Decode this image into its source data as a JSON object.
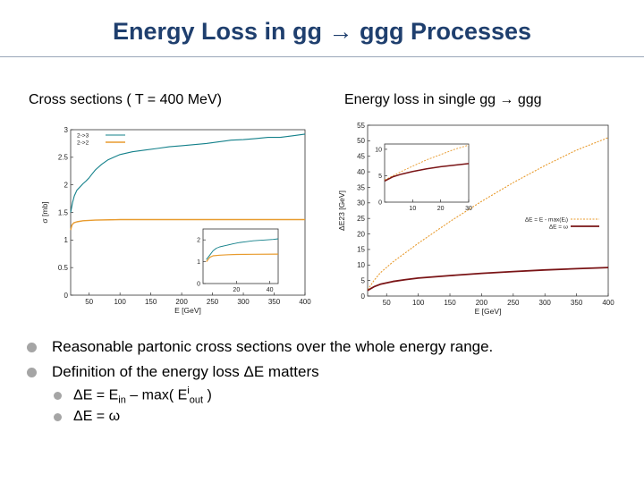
{
  "page": {
    "title": "Energy Loss in gg → ggg Processes",
    "left_caption": "Cross sections ( T = 400 MeV)",
    "right_caption": "Energy loss in single gg → ggg"
  },
  "bullets": [
    "Reasonable partonic cross sections over the whole energy range.",
    "Definition of the energy loss ΔE matters"
  ],
  "sub_bullets": {
    "one": {
      "lead": "ΔE = E",
      "sub1": "in",
      "mid": " – max( E",
      "sup": "i",
      "sub2": "out",
      "tail": " )"
    },
    "two": {
      "text": "ΔE = ω"
    }
  },
  "colors": {
    "title": "#1f3f6e",
    "teal": "#13808a",
    "orange": "#e89b2e",
    "darkred": "#7a1416",
    "bullet": "#a5a5a5"
  },
  "chart_data": [
    {
      "type": "line",
      "title": "Cross sections ( T = 400 MeV)",
      "xlabel": "E [GeV]",
      "ylabel": "σ [mb]",
      "xlim": [
        20,
        400
      ],
      "ylim": [
        0,
        3
      ],
      "xticks": [
        50,
        100,
        150,
        200,
        250,
        300,
        350,
        400
      ],
      "xtick_labels": [
        "50",
        "100",
        "150",
        "200",
        "250",
        "300",
        "350",
        "400"
      ],
      "yticks": [
        0,
        0.5,
        1,
        1.5,
        2,
        2.5,
        3
      ],
      "ytick_labels": [
        "0",
        "0.5",
        "1",
        "1.5",
        "2",
        "2.5",
        "3"
      ],
      "legend": {
        "position": "top-left",
        "entries": [
          "2->3",
          "2->2"
        ]
      },
      "series": [
        {
          "name": "2->3",
          "color": "#13808a",
          "x": [
            20,
            23,
            26,
            30,
            35,
            40,
            45,
            50,
            55,
            60,
            70,
            80,
            90,
            100,
            120,
            140,
            160,
            180,
            200,
            220,
            240,
            260,
            280,
            300,
            320,
            340,
            360,
            380,
            400
          ],
          "y": [
            1.5,
            1.68,
            1.8,
            1.9,
            1.96,
            2.02,
            2.07,
            2.13,
            2.2,
            2.27,
            2.37,
            2.45,
            2.5,
            2.55,
            2.6,
            2.63,
            2.66,
            2.69,
            2.71,
            2.73,
            2.75,
            2.78,
            2.81,
            2.82,
            2.84,
            2.86,
            2.86,
            2.89,
            2.92
          ]
        },
        {
          "name": "2->2",
          "color": "#e89b2e",
          "x": [
            20,
            22,
            25,
            30,
            40,
            60,
            100,
            150,
            200,
            250,
            300,
            350,
            400
          ],
          "y": [
            1.18,
            1.27,
            1.31,
            1.33,
            1.35,
            1.36,
            1.37,
            1.37,
            1.37,
            1.37,
            1.37,
            1.37,
            1.37
          ]
        }
      ],
      "inset": {
        "xlim": [
          0,
          45
        ],
        "ylim": [
          0,
          2.5
        ],
        "xticks": [
          20,
          40
        ],
        "xtick_labels": [
          "20",
          "40"
        ],
        "yticks": [
          0,
          1,
          2
        ],
        "ytick_labels": [
          "0",
          "1",
          "2"
        ],
        "series": [
          {
            "name": "2->3",
            "color": "#13808a",
            "x": [
              2,
              4,
              6,
              8,
              10,
              14,
              18,
              22,
              26,
              30,
              34,
              38,
              42,
              45
            ],
            "y": [
              1.1,
              1.3,
              1.5,
              1.62,
              1.68,
              1.75,
              1.82,
              1.88,
              1.92,
              1.96,
              1.98,
              2.0,
              2.02,
              2.05
            ]
          },
          {
            "name": "2->2",
            "color": "#e89b2e",
            "x": [
              2,
              4,
              6,
              10,
              15,
              20,
              30,
              45
            ],
            "y": [
              1.0,
              1.2,
              1.27,
              1.3,
              1.32,
              1.33,
              1.34,
              1.35
            ]
          }
        ]
      }
    },
    {
      "type": "line",
      "title": "Energy loss in single gg → ggg",
      "xlabel": "E [GeV]",
      "ylabel": "ΔE23 [GeV]",
      "xlim": [
        20,
        400
      ],
      "ylim": [
        0,
        55
      ],
      "xticks": [
        50,
        100,
        150,
        200,
        250,
        300,
        350,
        400
      ],
      "xtick_labels": [
        "50",
        "100",
        "150",
        "200",
        "250",
        "300",
        "350",
        "400"
      ],
      "yticks": [
        0,
        5,
        10,
        15,
        20,
        25,
        30,
        35,
        40,
        45,
        50,
        55
      ],
      "ytick_labels": [
        "0",
        "5",
        "10",
        "15",
        "20",
        "25",
        "30",
        "35",
        "40",
        "45",
        "50",
        "55"
      ],
      "legend": {
        "position": "middle-right",
        "entries": [
          "ΔE = E - max(Eᵢ)",
          "ΔE = ω"
        ]
      },
      "series": [
        {
          "name": "ΔE = E - max(Eᵢ)",
          "color": "#e89b2e",
          "x": [
            20,
            30,
            40,
            60,
            80,
            100,
            150,
            200,
            250,
            300,
            350,
            400
          ],
          "y": [
            2,
            5,
            7.5,
            11,
            14,
            17,
            24,
            30.5,
            36.5,
            42,
            47,
            51
          ]
        },
        {
          "name": "ΔE = ω",
          "color": "#7a1416",
          "x": [
            20,
            30,
            40,
            60,
            80,
            100,
            150,
            200,
            250,
            300,
            350,
            400
          ],
          "y": [
            1.8,
            3,
            3.8,
            4.7,
            5.3,
            5.8,
            6.6,
            7.3,
            7.9,
            8.4,
            8.8,
            9.2
          ]
        }
      ],
      "inset": {
        "xlim": [
          0,
          30
        ],
        "ylim": [
          0,
          11
        ],
        "xticks": [
          10,
          20,
          30
        ],
        "xtick_labels": [
          "10",
          "20",
          "30"
        ],
        "yticks": [
          0,
          5,
          10
        ],
        "ytick_labels": [
          "0",
          "5",
          "10"
        ],
        "series": [
          {
            "name": "ΔE = E - max(Eᵢ)",
            "color": "#e89b2e",
            "x": [
              0,
              3,
              6,
              10,
              15,
              20,
              25,
              30
            ],
            "y": [
              4.2,
              5.0,
              5.8,
              6.8,
              8.0,
              9.0,
              10.0,
              10.8
            ]
          },
          {
            "name": "ΔE = ω",
            "color": "#7a1416",
            "x": [
              0,
              3,
              6,
              10,
              15,
              20,
              25,
              30
            ],
            "y": [
              4.0,
              4.8,
              5.3,
              5.8,
              6.3,
              6.7,
              7.0,
              7.3
            ]
          }
        ]
      }
    }
  ]
}
